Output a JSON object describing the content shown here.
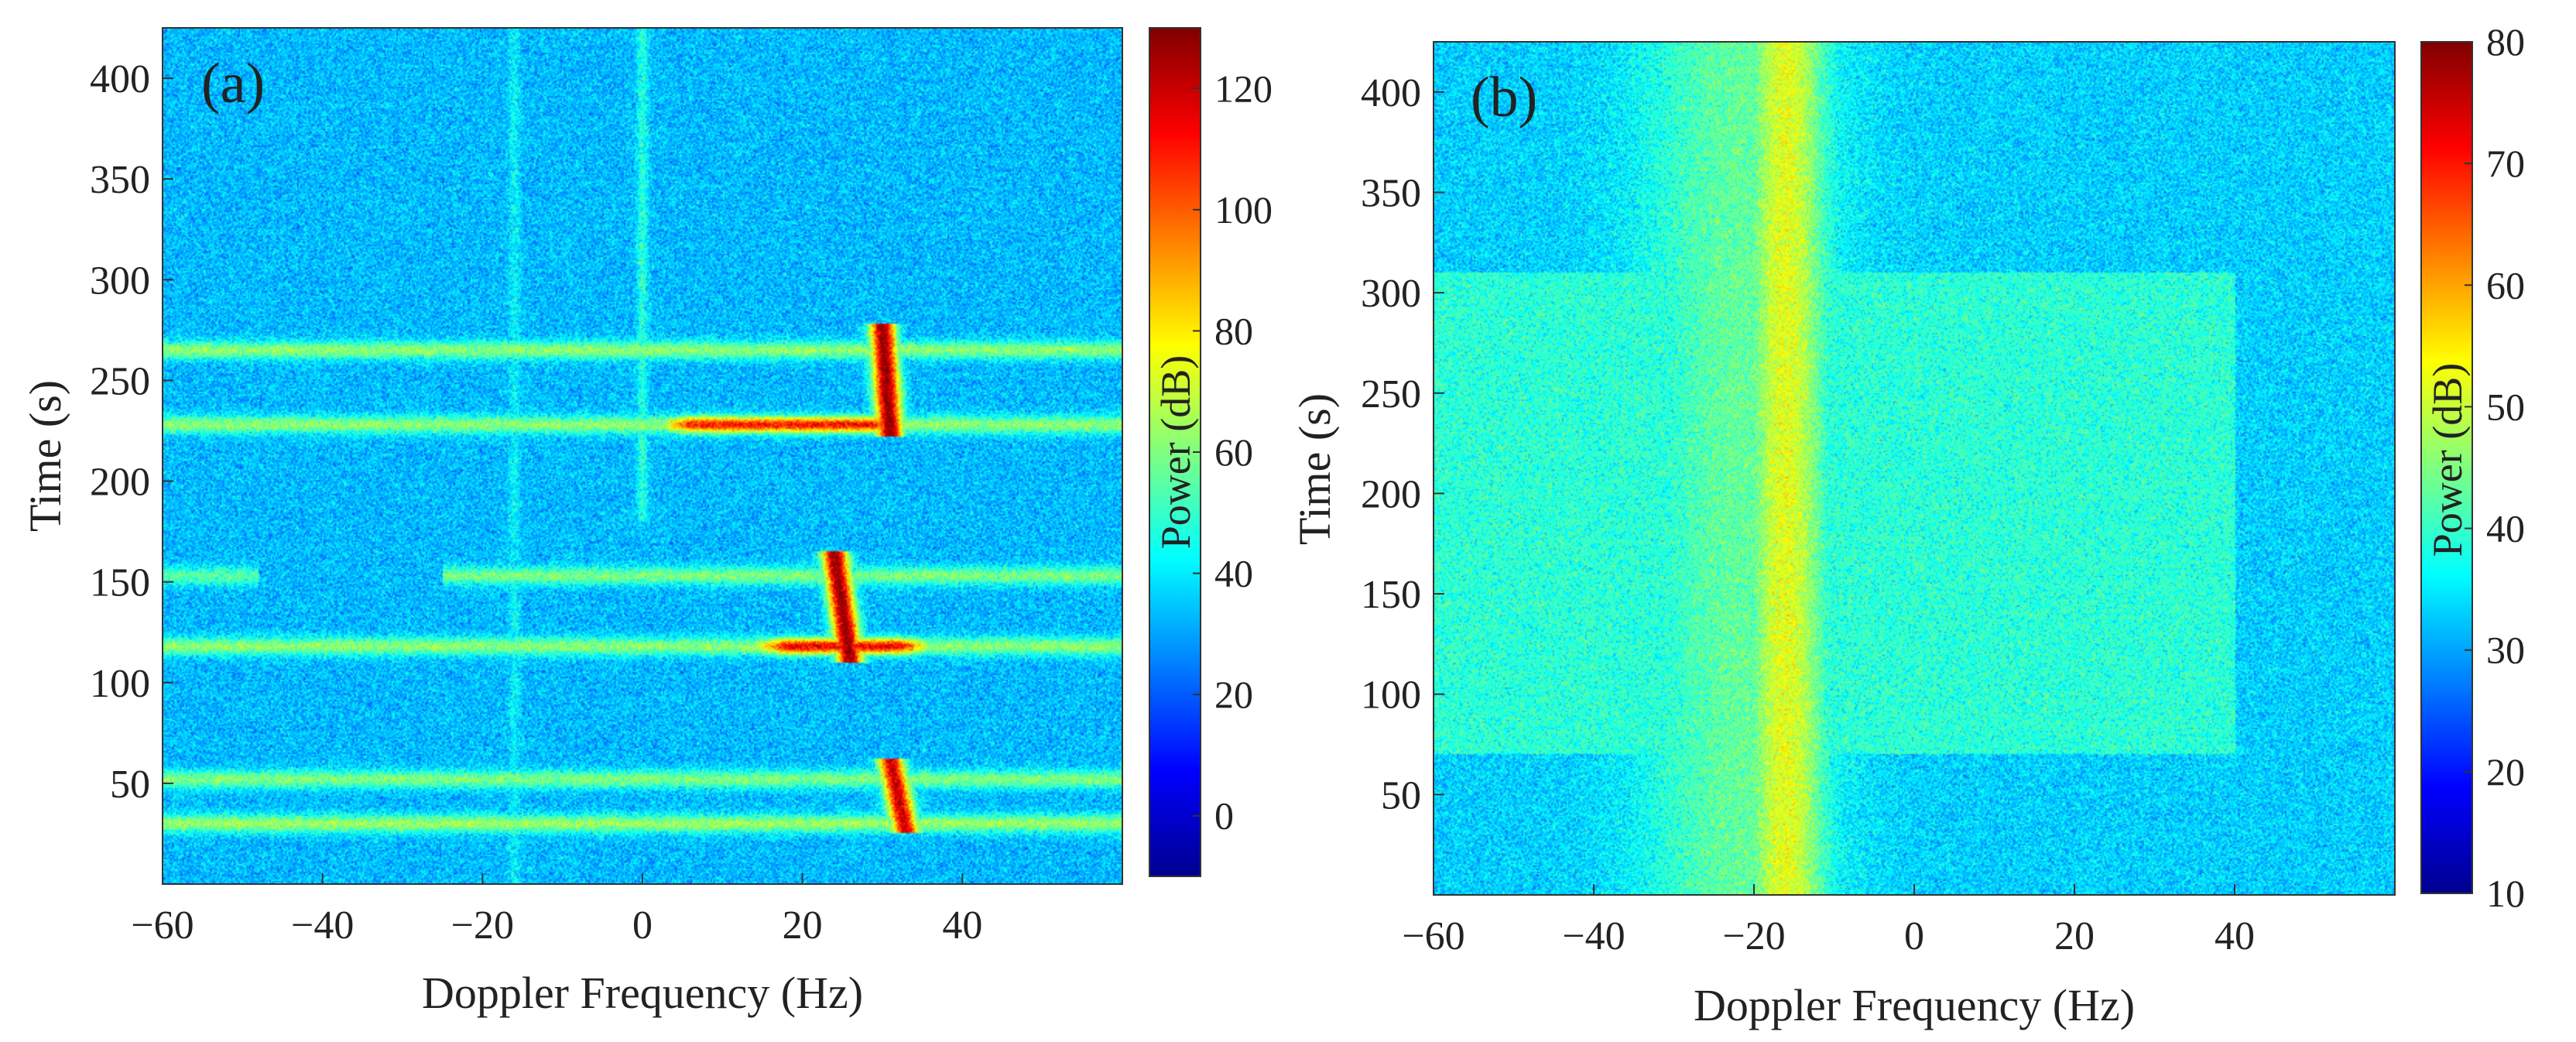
{
  "chart_data": [
    {
      "type": "heatmap",
      "panel_label": "(a)",
      "xlabel": "Doppler Frequency (Hz)",
      "ylabel": "Time (s)",
      "xlim": [
        -60,
        60
      ],
      "ylim": [
        0,
        425
      ],
      "xticks": [
        -60,
        -40,
        -20,
        0,
        20,
        40
      ],
      "xtick_labels": [
        "−60",
        "−40",
        "−20",
        "0",
        "20",
        "40"
      ],
      "yticks": [
        50,
        100,
        150,
        200,
        250,
        300,
        350,
        400
      ],
      "ytick_labels": [
        "50",
        "100",
        "150",
        "200",
        "250",
        "300",
        "350",
        "400"
      ],
      "colorbar": {
        "label": "Power (dB)",
        "range": [
          -10,
          130
        ],
        "ticks": [
          0,
          20,
          40,
          60,
          80,
          100,
          120
        ],
        "tick_labels": [
          "0",
          "20",
          "40",
          "60",
          "80",
          "100",
          "120"
        ],
        "colormap": "jet"
      },
      "background_level": 33,
      "features": {
        "horizontal_bands": [
          {
            "t": 265,
            "f_from": -60,
            "f_to": 60,
            "level": 62
          },
          {
            "t": 228,
            "f_from": -60,
            "f_to": 60,
            "level": 62
          },
          {
            "t": 153,
            "f_from": -60,
            "f_to": -48,
            "level": 55
          },
          {
            "t": 153,
            "f_from": -25,
            "f_to": 60,
            "level": 60
          },
          {
            "t": 118,
            "f_from": -60,
            "f_to": 60,
            "level": 62
          },
          {
            "t": 52,
            "f_from": -60,
            "f_to": 60,
            "level": 60
          },
          {
            "t": 30,
            "f_from": -60,
            "f_to": 60,
            "level": 64
          }
        ],
        "hot_segments": [
          {
            "f_from": 0,
            "f_to": 35,
            "t": 228,
            "level": 110
          },
          {
            "f_from": 12,
            "f_to": 38,
            "t": 118,
            "level": 115
          }
        ],
        "target_streaks": [
          {
            "t_from": 222,
            "t_to": 278,
            "f_from": 31,
            "f_to": 30,
            "level": 128
          },
          {
            "t_from": 110,
            "t_to": 165,
            "f_from": 26,
            "f_to": 24,
            "level": 128
          },
          {
            "t_from": 25,
            "t_to": 62,
            "f_from": 33,
            "f_to": 31,
            "level": 120
          }
        ],
        "vertical_lines": [
          {
            "f": 0,
            "t_from": 180,
            "t_to": 425,
            "level": 48
          },
          {
            "f": -16,
            "t_from": 0,
            "t_to": 425,
            "level": 42
          }
        ]
      }
    },
    {
      "type": "heatmap",
      "panel_label": "(b)",
      "xlabel": "Doppler Frequency (Hz)",
      "ylabel": "Time (s)",
      "xlim": [
        -60,
        60
      ],
      "ylim": [
        0,
        425
      ],
      "xticks": [
        -60,
        -40,
        -20,
        0,
        20,
        40
      ],
      "xtick_labels": [
        "−60",
        "−40",
        "−20",
        "0",
        "20",
        "40"
      ],
      "yticks": [
        50,
        100,
        150,
        200,
        250,
        300,
        350,
        400
      ],
      "ytick_labels": [
        "50",
        "100",
        "150",
        "200",
        "250",
        "300",
        "350",
        "400"
      ],
      "colorbar": {
        "label": "Power (dB)",
        "range": [
          10,
          80
        ],
        "ticks": [
          10,
          20,
          30,
          40,
          50,
          60,
          70,
          80
        ],
        "tick_labels": [
          "10",
          "20",
          "30",
          "40",
          "50",
          "60",
          "70",
          "80"
        ],
        "colormap": "jet"
      },
      "background_level": 33,
      "features": {
        "vertical_bands": [
          {
            "f_center": -16,
            "half_width": 5,
            "level": 52
          },
          {
            "f_center": -22,
            "half_width": 12,
            "level": 43
          }
        ],
        "broad_region": {
          "t_from": 70,
          "t_to": 310,
          "f_from": -60,
          "f_to": 40,
          "level": 39
        }
      }
    }
  ]
}
